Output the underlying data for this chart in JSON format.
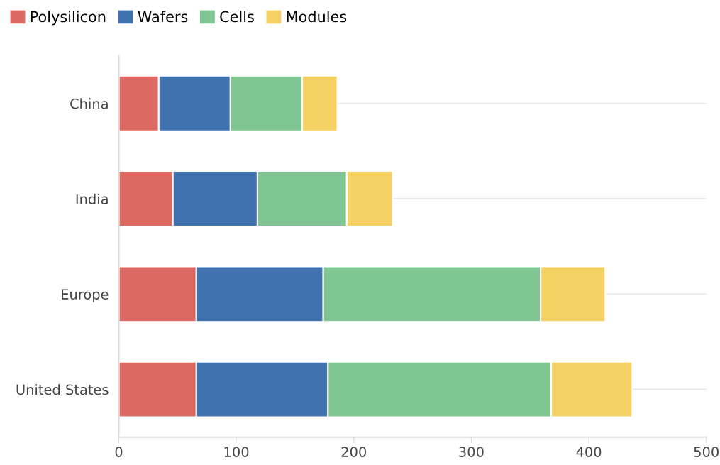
{
  "chart_data": {
    "type": "bar",
    "orientation": "horizontal",
    "stacked": true,
    "categories": [
      "China",
      "India",
      "Europe",
      "United States"
    ],
    "series": [
      {
        "name": "Polysilicon",
        "color": "#dc6a62",
        "values": [
          34,
          46,
          66,
          66
        ]
      },
      {
        "name": "Wafers",
        "color": "#4172b0",
        "values": [
          61,
          72,
          108,
          112
        ]
      },
      {
        "name": "Cells",
        "color": "#80c692",
        "values": [
          61,
          76,
          185,
          190
        ]
      },
      {
        "name": "Modules",
        "color": "#f5d062",
        "values": [
          30,
          39,
          55,
          69
        ]
      }
    ],
    "xlim": [
      0,
      500
    ],
    "xticks": [
      0,
      100,
      200,
      300,
      400,
      500
    ],
    "grid": "y",
    "legend": "top left"
  }
}
